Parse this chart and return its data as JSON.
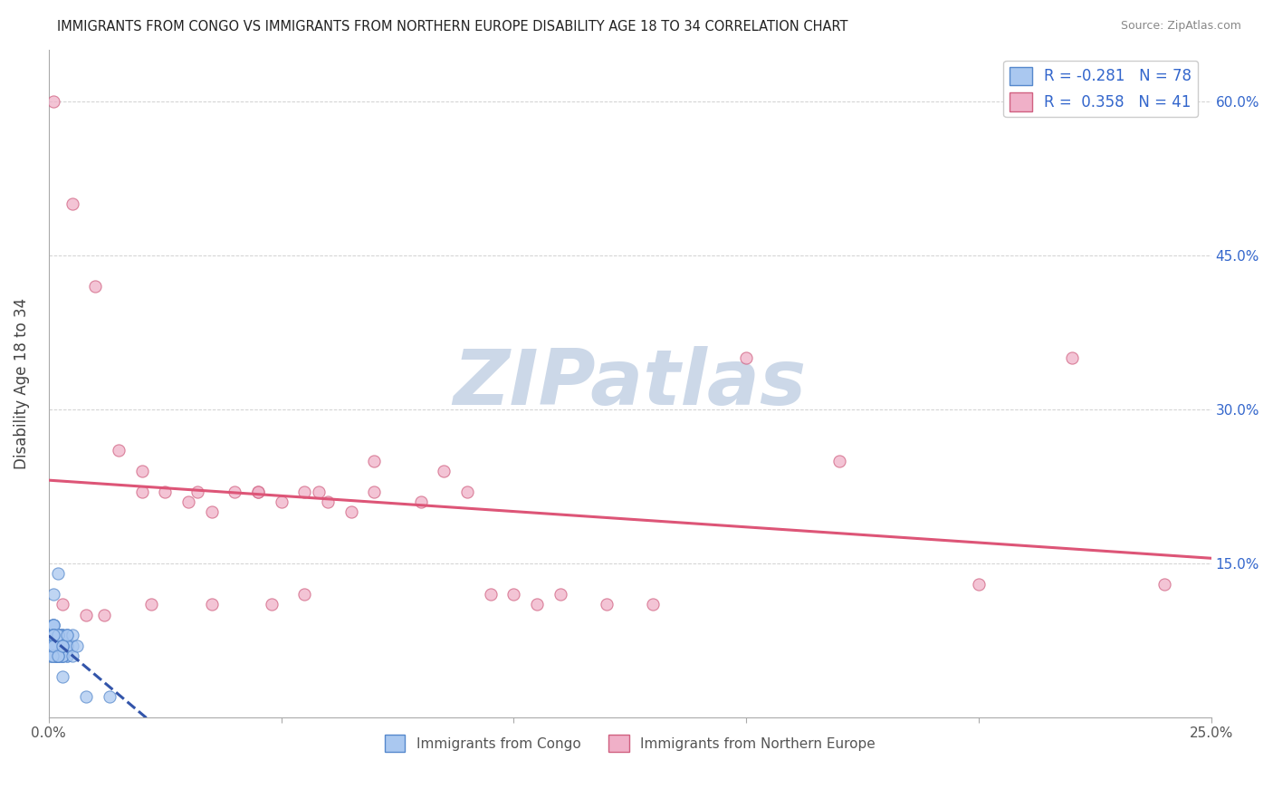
{
  "title": "IMMIGRANTS FROM CONGO VS IMMIGRANTS FROM NORTHERN EUROPE DISABILITY AGE 18 TO 34 CORRELATION CHART",
  "source": "Source: ZipAtlas.com",
  "ylabel": "Disability Age 18 to 34",
  "xlim": [
    0.0,
    0.25
  ],
  "ylim": [
    0.0,
    0.65
  ],
  "xticks": [
    0.0,
    0.05,
    0.1,
    0.15,
    0.2,
    0.25
  ],
  "yticks": [
    0.0,
    0.15,
    0.3,
    0.45,
    0.6
  ],
  "ytick_labels_right": [
    "",
    "15.0%",
    "30.0%",
    "45.0%",
    "60.0%"
  ],
  "xtick_labels": [
    "0.0%",
    "",
    "",
    "",
    "",
    "25.0%"
  ],
  "congo_R": -0.281,
  "congo_N": 78,
  "north_europe_R": 0.358,
  "north_europe_N": 41,
  "congo_color": "#aac8f0",
  "congo_edge_color": "#5588cc",
  "north_europe_color": "#f0b0c8",
  "north_europe_edge_color": "#d06080",
  "congo_trend_color": "#3355aa",
  "north_europe_trend_color": "#dd5577",
  "watermark_color": "#ccd8e8",
  "legend_label_congo": "Immigrants from Congo",
  "legend_label_north_europe": "Immigrants from Northern Europe",
  "congo_x": [
    0.0005,
    0.001,
    0.0008,
    0.0012,
    0.0015,
    0.002,
    0.001,
    0.0018,
    0.0022,
    0.0008,
    0.003,
    0.0005,
    0.001,
    0.0015,
    0.002,
    0.0025,
    0.003,
    0.004,
    0.0005,
    0.001,
    0.0012,
    0.0018,
    0.002,
    0.0028,
    0.0035,
    0.004,
    0.005,
    0.0008,
    0.001,
    0.0015,
    0.002,
    0.003,
    0.0005,
    0.001,
    0.002,
    0.003,
    0.0008,
    0.0012,
    0.002,
    0.003,
    0.004,
    0.0005,
    0.001,
    0.0015,
    0.002,
    0.0025,
    0.003,
    0.0008,
    0.001,
    0.002,
    0.003,
    0.004,
    0.0005,
    0.001,
    0.002,
    0.003,
    0.004,
    0.005,
    0.0008,
    0.001,
    0.002,
    0.003,
    0.0005,
    0.001,
    0.002,
    0.003,
    0.004,
    0.005,
    0.006,
    0.0008,
    0.001,
    0.002,
    0.003,
    0.008,
    0.013,
    0.002,
    0.001,
    0.003
  ],
  "congo_y": [
    0.08,
    0.07,
    0.09,
    0.06,
    0.08,
    0.07,
    0.09,
    0.06,
    0.08,
    0.07,
    0.06,
    0.08,
    0.09,
    0.07,
    0.08,
    0.06,
    0.07,
    0.08,
    0.06,
    0.07,
    0.08,
    0.06,
    0.07,
    0.08,
    0.07,
    0.06,
    0.07,
    0.08,
    0.09,
    0.07,
    0.06,
    0.08,
    0.07,
    0.08,
    0.06,
    0.07,
    0.08,
    0.06,
    0.07,
    0.08,
    0.06,
    0.07,
    0.08,
    0.06,
    0.07,
    0.08,
    0.06,
    0.07,
    0.08,
    0.06,
    0.07,
    0.08,
    0.06,
    0.07,
    0.08,
    0.06,
    0.07,
    0.08,
    0.06,
    0.07,
    0.08,
    0.06,
    0.07,
    0.08,
    0.06,
    0.07,
    0.08,
    0.06,
    0.07,
    0.06,
    0.07,
    0.06,
    0.07,
    0.02,
    0.02,
    0.14,
    0.12,
    0.04
  ],
  "north_europe_x": [
    0.001,
    0.005,
    0.01,
    0.015,
    0.02,
    0.025,
    0.03,
    0.035,
    0.04,
    0.045,
    0.05,
    0.055,
    0.06,
    0.065,
    0.07,
    0.08,
    0.09,
    0.1,
    0.11,
    0.12,
    0.13,
    0.003,
    0.008,
    0.02,
    0.032,
    0.045,
    0.058,
    0.07,
    0.085,
    0.095,
    0.105,
    0.055,
    0.012,
    0.022,
    0.035,
    0.048,
    0.15,
    0.17,
    0.2,
    0.22,
    0.24
  ],
  "north_europe_y": [
    0.6,
    0.5,
    0.42,
    0.26,
    0.24,
    0.22,
    0.21,
    0.2,
    0.22,
    0.22,
    0.21,
    0.22,
    0.21,
    0.2,
    0.22,
    0.21,
    0.22,
    0.12,
    0.12,
    0.11,
    0.11,
    0.11,
    0.1,
    0.22,
    0.22,
    0.22,
    0.22,
    0.25,
    0.24,
    0.12,
    0.11,
    0.12,
    0.1,
    0.11,
    0.11,
    0.11,
    0.35,
    0.25,
    0.13,
    0.35,
    0.13
  ]
}
